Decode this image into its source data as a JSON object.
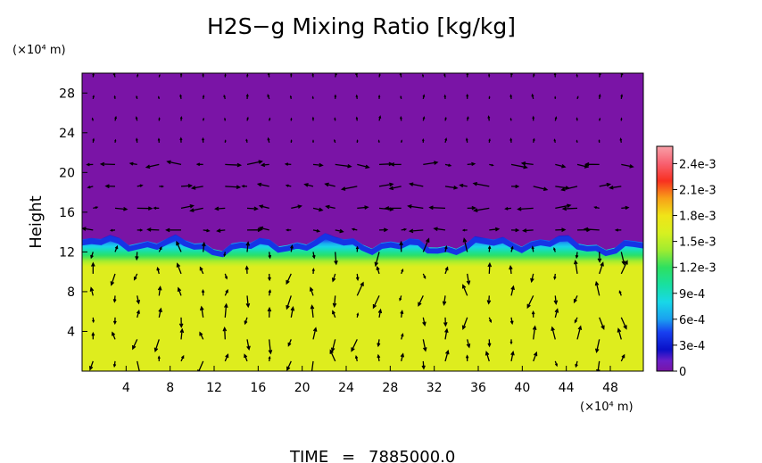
{
  "chart_data": {
    "type": "heatmap",
    "title": "H2S−g Mixing Ratio [kg/kg]",
    "ylabel": "Height",
    "xunit": "(×10⁴ m)",
    "yunit": "(×10⁴ m)",
    "xlim": [
      0,
      51
    ],
    "ylim": [
      0,
      30
    ],
    "xticks": [
      "4",
      "8",
      "12",
      "16",
      "20",
      "24",
      "28",
      "32",
      "36",
      "40",
      "44",
      "48"
    ],
    "yticks": [
      "4",
      "8",
      "12",
      "16",
      "20",
      "24",
      "28"
    ],
    "xtick_values": [
      4,
      8,
      12,
      16,
      20,
      24,
      28,
      32,
      36,
      40,
      44,
      48
    ],
    "ytick_values": [
      4,
      8,
      12,
      16,
      20,
      24,
      28
    ],
    "colorbar": {
      "ticks": [
        "0",
        "3e-4",
        "6e-4",
        "9e-4",
        "1.2e-3",
        "1.5e-3",
        "1.8e-3",
        "2.1e-3",
        "2.4e-3"
      ],
      "tick_values": [
        0,
        0.0003,
        0.0006,
        0.0009,
        0.0012,
        0.0015,
        0.0018,
        0.0021,
        0.0024
      ],
      "range": [
        0,
        0.0026
      ],
      "stops": [
        {
          "value": 0,
          "color": "#7a14a6"
        },
        {
          "value": 0.00012,
          "color": "#6a1fc8"
        },
        {
          "value": 0.00025,
          "color": "#0a10c8"
        },
        {
          "value": 0.00045,
          "color": "#1840f0"
        },
        {
          "value": 0.0006,
          "color": "#1aa0f0"
        },
        {
          "value": 0.0008,
          "color": "#18d8e8"
        },
        {
          "value": 0.001,
          "color": "#18e0a0"
        },
        {
          "value": 0.0012,
          "color": "#2ee060"
        },
        {
          "value": 0.0014,
          "color": "#a0ec30"
        },
        {
          "value": 0.0016,
          "color": "#d8f020"
        },
        {
          "value": 0.0018,
          "color": "#f0e418"
        },
        {
          "value": 0.002,
          "color": "#f8a018"
        },
        {
          "value": 0.0022,
          "color": "#f83020"
        },
        {
          "value": 0.0024,
          "color": "#f86070"
        },
        {
          "value": 0.0026,
          "color": "#f8a0a8"
        }
      ]
    },
    "fields": {
      "upper_value": 0,
      "lower_value": 0.00165,
      "interface_height": 13,
      "transition_band": [
        10.5,
        14
      ]
    },
    "vectors": "wind velocity arrows on a regular grid"
  },
  "footer": {
    "time_label": "TIME",
    "time_equals": "=",
    "time_value": "7885000.0"
  },
  "colors": {
    "background": "#ffffff",
    "text": "#000000",
    "arrow": "#000000"
  }
}
